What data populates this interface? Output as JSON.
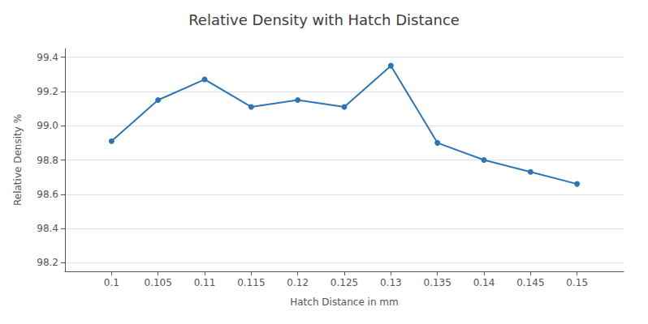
{
  "chart_data": {
    "type": "line",
    "title": "Relative Density with Hatch Distance",
    "xlabel": "Hatch Distance in mm",
    "ylabel": "Relative Density %",
    "x": [
      0.1,
      0.105,
      0.11,
      0.115,
      0.12,
      0.125,
      0.13,
      0.135,
      0.14,
      0.145,
      0.15
    ],
    "values": [
      98.91,
      99.15,
      99.27,
      99.11,
      99.15,
      99.11,
      99.35,
      98.9,
      98.8,
      98.73,
      98.66
    ],
    "color": "#2E75B6",
    "marker": "circle",
    "xlim": [
      0.095,
      0.155
    ],
    "xticks": [
      0.1,
      0.105,
      0.11,
      0.115,
      0.12,
      0.125,
      0.13,
      0.135,
      0.14,
      0.145,
      0.15
    ],
    "ylim": [
      98.15,
      99.45
    ],
    "yticks": [
      98.2,
      98.4,
      98.6,
      98.8,
      {
        "value": 99.0,
        "label": "99.0"
      },
      99.2,
      99.4
    ],
    "grid": "y"
  }
}
